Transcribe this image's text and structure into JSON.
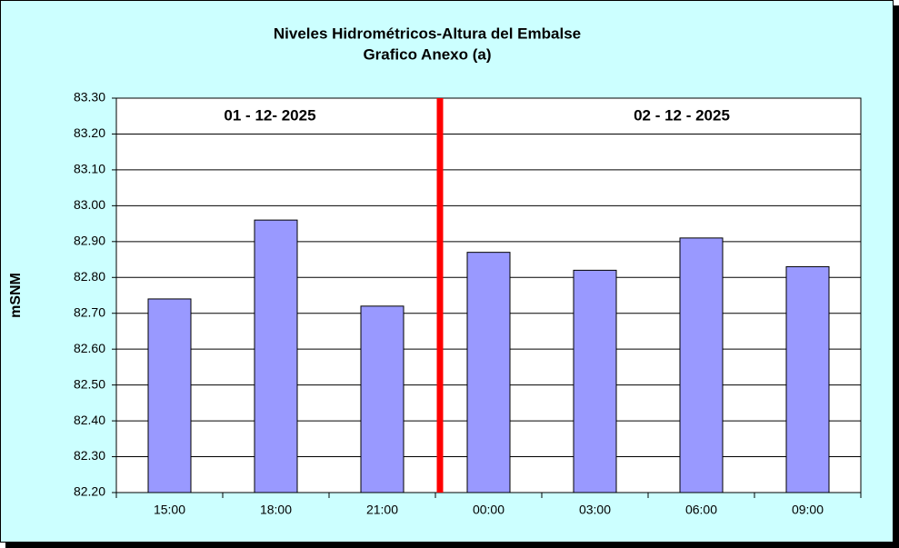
{
  "chart_data": {
    "type": "bar",
    "title": "Niveles Hidrométricos-Altura del Embalse",
    "subtitle": "Grafico Anexo (a)",
    "y_label": "mSNM",
    "annotations": [
      "01 - 12- 2025",
      "02 - 12 - 2025"
    ],
    "categories": [
      "15:00",
      "18:00",
      "21:00",
      "00:00",
      "03:00",
      "06:00",
      "09:00"
    ],
    "values": [
      82.74,
      82.96,
      82.72,
      82.87,
      82.82,
      82.91,
      82.83
    ],
    "color": "#9999ff",
    "ylim": [
      82.2,
      83.3
    ],
    "yticks": [
      {
        "value": 82.2,
        "label": "82.20"
      },
      {
        "value": 82.3,
        "label": "82.30"
      },
      {
        "value": 82.4,
        "label": "82.40"
      },
      {
        "value": 82.5,
        "label": "82.50"
      },
      {
        "value": 82.6,
        "label": "82.60"
      },
      {
        "value": 82.7,
        "label": "82.70"
      },
      {
        "value": 82.8,
        "label": "82.80"
      },
      {
        "value": 82.9,
        "label": "82.90"
      },
      {
        "value": 83.0,
        "label": "83.00"
      },
      {
        "value": 83.1,
        "label": "83.10"
      },
      {
        "value": 83.2,
        "label": "83.20"
      },
      {
        "value": 83.3,
        "label": "83.30"
      }
    ],
    "grid": true
  }
}
